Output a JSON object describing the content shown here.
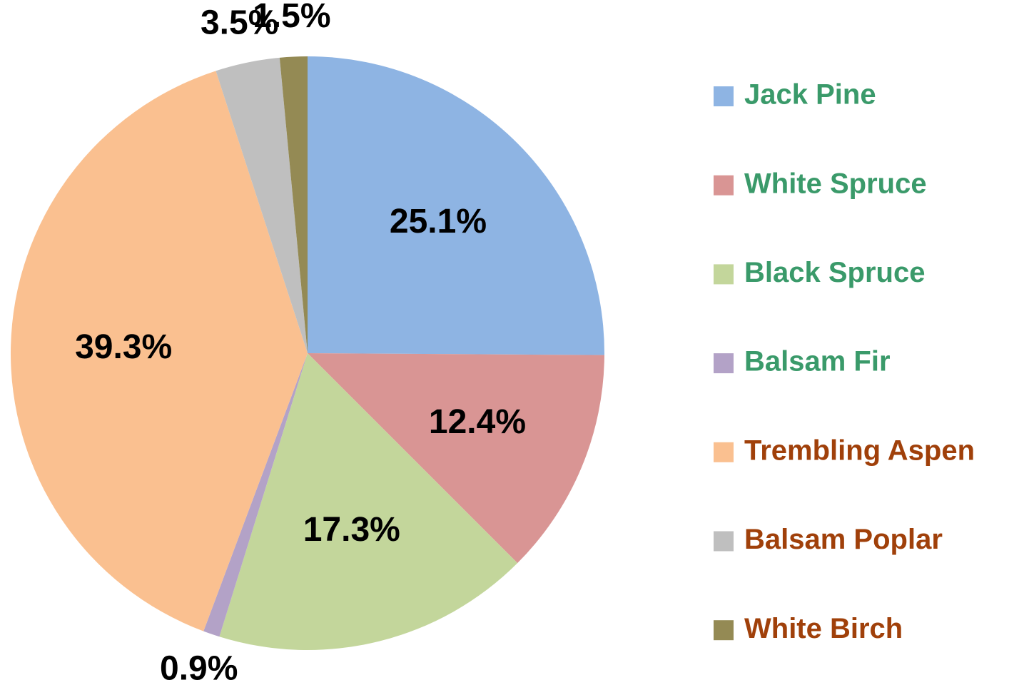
{
  "chart_data": {
    "type": "pie",
    "categories": [
      "Jack Pine",
      "White Spruce",
      "Black Spruce",
      "Balsam Fir",
      "Trembling Aspen",
      "Balsam Poplar",
      "White Birch"
    ],
    "values": [
      25.1,
      12.4,
      17.3,
      0.9,
      39.3,
      3.5,
      1.5
    ],
    "value_labels": [
      "25.1%",
      "12.4%",
      "17.3%",
      "0.9%",
      "39.3%",
      "3.5%",
      "1.5%"
    ],
    "colors": [
      "#8eb4e3",
      "#d99594",
      "#c3d69b",
      "#b3a2c7",
      "#fac090",
      "#bfbfbf",
      "#948a54"
    ],
    "legend_text_colors": [
      "#3a9a6a",
      "#3a9a6a",
      "#3a9a6a",
      "#3a9a6a",
      "#a0400a",
      "#a0400a",
      "#a0400a"
    ],
    "legend": "right"
  }
}
